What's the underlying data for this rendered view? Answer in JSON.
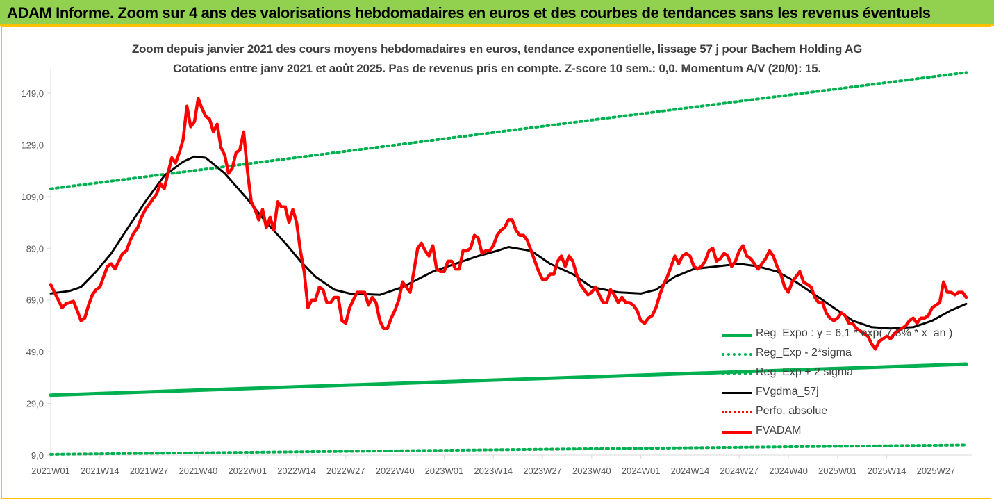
{
  "banner": {
    "title": "ADAM Informe. Zoom sur 4 ans des valorisations hebdomadaires en euros et des courbes de tendances sans les revenus éventuels"
  },
  "chart_data": {
    "type": "line",
    "title": "Zoom depuis janvier 2021 des cours moyens hebdomadaires en euros, tendance exponentielle, lissage 57 j pour Bachem Holding AG",
    "subtitle": "Cotations entre janv 2021 et août 2025. Pas de revenus pris en compte. Z-score 10 sem.: 0,0. Momentum A/V (20/0): 15.",
    "xlabel": "",
    "ylabel": "",
    "ylim": [
      9,
      156
    ],
    "grid": false,
    "legend_position": "bottom-right",
    "y_ticks": [
      "149,0",
      "129,0",
      "109,0",
      "89,0",
      "69,0",
      "49,0",
      "29,0",
      "9,0"
    ],
    "y_tick_values": [
      149,
      129,
      109,
      89,
      69,
      49,
      29,
      9
    ],
    "x_ticks": [
      "2021W01",
      "2021W14",
      "2021W27",
      "2021W40",
      "2022W01",
      "2022W14",
      "2022W27",
      "2022W40",
      "2023W01",
      "2023W14",
      "2023W27",
      "2023W40",
      "2024W01",
      "2024W14",
      "2024W27",
      "2024W40",
      "2025W01",
      "2025W14",
      "2025W27"
    ],
    "x_tick_index": [
      0,
      13,
      26,
      39,
      52,
      65,
      78,
      91,
      104,
      117,
      130,
      143,
      156,
      169,
      182,
      195,
      208,
      221,
      234
    ],
    "n_weeks": 243,
    "series": [
      {
        "name": "Reg_Expo : y = 6,1 * exp( 7,3% * x_an )",
        "style": "solid",
        "color": "#00b050",
        "points": [
          [
            0,
            32.2
          ],
          [
            242,
            44.2
          ]
        ]
      },
      {
        "name": "Reg_Exp - 2*sigma",
        "style": "dotted",
        "color": "#00b050",
        "points": [
          [
            0,
            9.3
          ],
          [
            242,
            12.9
          ]
        ]
      },
      {
        "name": "Reg_Exp + 2 sigma",
        "style": "dotted",
        "color": "#00b050",
        "points": [
          [
            0,
            112
          ],
          [
            242,
            157
          ]
        ]
      },
      {
        "name": "FVgdma_57j",
        "style": "solid",
        "color": "#000000",
        "points": [
          [
            0,
            71.5
          ],
          [
            5,
            72.5
          ],
          [
            8,
            74
          ],
          [
            12,
            80
          ],
          [
            16,
            87
          ],
          [
            20,
            96
          ],
          [
            25,
            107
          ],
          [
            30,
            117
          ],
          [
            35,
            122.5
          ],
          [
            38,
            124.5
          ],
          [
            41,
            124
          ],
          [
            46,
            118
          ],
          [
            52,
            108
          ],
          [
            57,
            99
          ],
          [
            62,
            91
          ],
          [
            66,
            84
          ],
          [
            70,
            78
          ],
          [
            75,
            73
          ],
          [
            79,
            71.5
          ],
          [
            87,
            71
          ],
          [
            93,
            74
          ],
          [
            97,
            77
          ],
          [
            101,
            80
          ],
          [
            107,
            83
          ],
          [
            113,
            86
          ],
          [
            118,
            88
          ],
          [
            121,
            89.5
          ],
          [
            127,
            88
          ],
          [
            132,
            83
          ],
          [
            138,
            79
          ],
          [
            143,
            74
          ],
          [
            150,
            72
          ],
          [
            156,
            71.5
          ],
          [
            160,
            73
          ],
          [
            165,
            78
          ],
          [
            170,
            81
          ],
          [
            176,
            82
          ],
          [
            182,
            83
          ],
          [
            187,
            82
          ],
          [
            192,
            80
          ],
          [
            197,
            76
          ],
          [
            202,
            71
          ],
          [
            207,
            66
          ],
          [
            212,
            61
          ],
          [
            217,
            58.5
          ],
          [
            222,
            58
          ],
          [
            228,
            58.5
          ],
          [
            233,
            61
          ],
          [
            238,
            65
          ],
          [
            242,
            67.5
          ]
        ]
      },
      {
        "name": "Perfo. absolue",
        "style": "dotted",
        "color": "#ff0000",
        "points": []
      },
      {
        "name": "FVADAM",
        "style": "solid",
        "color": "#ff0000",
        "points": [
          [
            0,
            75
          ],
          [
            1,
            72
          ],
          [
            2,
            69
          ],
          [
            3,
            66
          ],
          [
            4,
            67.5
          ],
          [
            5,
            68
          ],
          [
            6,
            68.5
          ],
          [
            7,
            65
          ],
          [
            8,
            61
          ],
          [
            9,
            62
          ],
          [
            10,
            67
          ],
          [
            11,
            71
          ],
          [
            12,
            73
          ],
          [
            13,
            74
          ],
          [
            14,
            78
          ],
          [
            15,
            82
          ],
          [
            16,
            83
          ],
          [
            17,
            81
          ],
          [
            18,
            84
          ],
          [
            19,
            87
          ],
          [
            20,
            88
          ],
          [
            21,
            92
          ],
          [
            22,
            95
          ],
          [
            23,
            97
          ],
          [
            24,
            101
          ],
          [
            25,
            104
          ],
          [
            26,
            106
          ],
          [
            27,
            108
          ],
          [
            28,
            110
          ],
          [
            29,
            114
          ],
          [
            30,
            112
          ],
          [
            31,
            118
          ],
          [
            32,
            124
          ],
          [
            33,
            122
          ],
          [
            34,
            126
          ],
          [
            35,
            131
          ],
          [
            36,
            144
          ],
          [
            37,
            136
          ],
          [
            38,
            138
          ],
          [
            39,
            147
          ],
          [
            40,
            143
          ],
          [
            41,
            140
          ],
          [
            42,
            139
          ],
          [
            43,
            134
          ],
          [
            44,
            137
          ],
          [
            45,
            128
          ],
          [
            46,
            125
          ],
          [
            47,
            118
          ],
          [
            48,
            120
          ],
          [
            49,
            126
          ],
          [
            50,
            127
          ],
          [
            51,
            134
          ],
          [
            52,
            119
          ],
          [
            53,
            107
          ],
          [
            54,
            104
          ],
          [
            55,
            100
          ],
          [
            56,
            104
          ],
          [
            57,
            97
          ],
          [
            58,
            101
          ],
          [
            59,
            96
          ],
          [
            60,
            107
          ],
          [
            61,
            105
          ],
          [
            62,
            105
          ],
          [
            63,
            99
          ],
          [
            64,
            104
          ],
          [
            65,
            99
          ],
          [
            66,
            88
          ],
          [
            67,
            80
          ],
          [
            68,
            66
          ],
          [
            69,
            69
          ],
          [
            70,
            69
          ],
          [
            71,
            74
          ],
          [
            72,
            73
          ],
          [
            73,
            68
          ],
          [
            74,
            68
          ],
          [
            75,
            70
          ],
          [
            76,
            70
          ],
          [
            77,
            61
          ],
          [
            78,
            60
          ],
          [
            79,
            66
          ],
          [
            80,
            69
          ],
          [
            81,
            72
          ],
          [
            82,
            72
          ],
          [
            83,
            72
          ],
          [
            84,
            67
          ],
          [
            85,
            70
          ],
          [
            86,
            68
          ],
          [
            87,
            61
          ],
          [
            88,
            58
          ],
          [
            89,
            58
          ],
          [
            90,
            62
          ],
          [
            91,
            65
          ],
          [
            92,
            69
          ],
          [
            93,
            76
          ],
          [
            94,
            74
          ],
          [
            95,
            72
          ],
          [
            96,
            80
          ],
          [
            97,
            89
          ],
          [
            98,
            91
          ],
          [
            99,
            88
          ],
          [
            100,
            86
          ],
          [
            101,
            90
          ],
          [
            102,
            81
          ],
          [
            103,
            80
          ],
          [
            104,
            80
          ],
          [
            105,
            84
          ],
          [
            106,
            84
          ],
          [
            107,
            81
          ],
          [
            108,
            81
          ],
          [
            109,
            88
          ],
          [
            110,
            88
          ],
          [
            111,
            89
          ],
          [
            112,
            94
          ],
          [
            113,
            93
          ],
          [
            114,
            87
          ],
          [
            115,
            88
          ],
          [
            116,
            88
          ],
          [
            117,
            90
          ],
          [
            118,
            94
          ],
          [
            119,
            96
          ],
          [
            120,
            97
          ],
          [
            121,
            100
          ],
          [
            122,
            100
          ],
          [
            123,
            96
          ],
          [
            124,
            94
          ],
          [
            125,
            94
          ],
          [
            126,
            92
          ],
          [
            127,
            88
          ],
          [
            128,
            84
          ],
          [
            129,
            80
          ],
          [
            130,
            77
          ],
          [
            131,
            77
          ],
          [
            132,
            79
          ],
          [
            133,
            79
          ],
          [
            134,
            84
          ],
          [
            135,
            86
          ],
          [
            136,
            82
          ],
          [
            137,
            86
          ],
          [
            138,
            84
          ],
          [
            139,
            79
          ],
          [
            140,
            75
          ],
          [
            141,
            73
          ],
          [
            142,
            71
          ],
          [
            143,
            72
          ],
          [
            144,
            74
          ],
          [
            145,
            71
          ],
          [
            146,
            68
          ],
          [
            147,
            68
          ],
          [
            148,
            73
          ],
          [
            149,
            71
          ],
          [
            150,
            68
          ],
          [
            151,
            70
          ],
          [
            152,
            68
          ],
          [
            153,
            68
          ],
          [
            154,
            67
          ],
          [
            155,
            65
          ],
          [
            156,
            61
          ],
          [
            157,
            60
          ],
          [
            158,
            62
          ],
          [
            159,
            63
          ],
          [
            160,
            66
          ],
          [
            161,
            71
          ],
          [
            162,
            75
          ],
          [
            163,
            78
          ],
          [
            164,
            82
          ],
          [
            165,
            86
          ],
          [
            166,
            83
          ],
          [
            167,
            86
          ],
          [
            168,
            87
          ],
          [
            169,
            86
          ],
          [
            170,
            82
          ],
          [
            171,
            81
          ],
          [
            172,
            82
          ],
          [
            173,
            84
          ],
          [
            174,
            88
          ],
          [
            175,
            89
          ],
          [
            176,
            84
          ],
          [
            177,
            85
          ],
          [
            178,
            87
          ],
          [
            179,
            86
          ],
          [
            180,
            82
          ],
          [
            181,
            84
          ],
          [
            182,
            88
          ],
          [
            183,
            90
          ],
          [
            184,
            86
          ],
          [
            185,
            85
          ],
          [
            186,
            83
          ],
          [
            187,
            81
          ],
          [
            188,
            83
          ],
          [
            189,
            85
          ],
          [
            190,
            88
          ],
          [
            191,
            86
          ],
          [
            192,
            82
          ],
          [
            193,
            79
          ],
          [
            194,
            74
          ],
          [
            195,
            72
          ],
          [
            196,
            76
          ],
          [
            197,
            78
          ],
          [
            198,
            80
          ],
          [
            199,
            76
          ],
          [
            200,
            75
          ],
          [
            201,
            74
          ],
          [
            202,
            70
          ],
          [
            203,
            68
          ],
          [
            204,
            68
          ],
          [
            205,
            64
          ],
          [
            206,
            62
          ],
          [
            207,
            61
          ],
          [
            208,
            62
          ],
          [
            209,
            64
          ],
          [
            210,
            63
          ],
          [
            211,
            60
          ],
          [
            212,
            60
          ],
          [
            213,
            58
          ],
          [
            214,
            57
          ],
          [
            215,
            56
          ],
          [
            216,
            55
          ],
          [
            217,
            52
          ],
          [
            218,
            50
          ],
          [
            219,
            53
          ],
          [
            220,
            54
          ],
          [
            221,
            55
          ],
          [
            222,
            54
          ],
          [
            223,
            56
          ],
          [
            224,
            57
          ],
          [
            225,
            58
          ],
          [
            226,
            59
          ],
          [
            227,
            61
          ],
          [
            228,
            62
          ],
          [
            229,
            60
          ],
          [
            230,
            62
          ],
          [
            231,
            62
          ],
          [
            232,
            63
          ],
          [
            233,
            66
          ],
          [
            234,
            67
          ],
          [
            235,
            68
          ],
          [
            236,
            76
          ],
          [
            237,
            72
          ],
          [
            238,
            72
          ],
          [
            239,
            71
          ],
          [
            240,
            72
          ],
          [
            241,
            72
          ],
          [
            242,
            70
          ]
        ]
      }
    ]
  }
}
